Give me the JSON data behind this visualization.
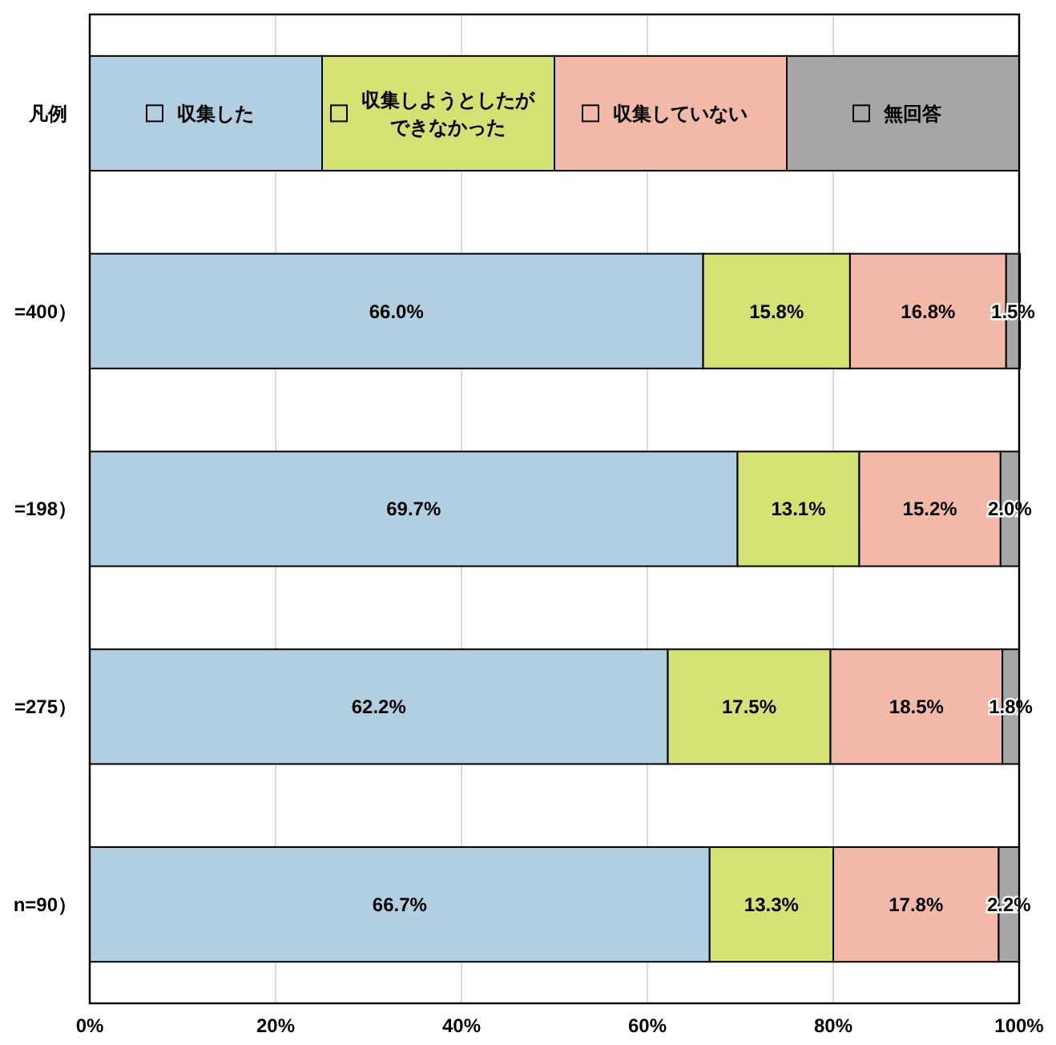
{
  "chart_data": {
    "type": "bar",
    "orientation": "horizontal",
    "stacked": true,
    "grid": "x",
    "legend": "top",
    "legend_title": "凡例",
    "categories": [
      "=400）",
      "=198）",
      "=275）",
      "n=90）"
    ],
    "series": [
      {
        "name": "収集した",
        "color": "#b1cfe1",
        "values": [
          66.0,
          69.7,
          62.2,
          66.7
        ],
        "value_labels": [
          "66.0%",
          "69.7%",
          "62.2%",
          "66.7%"
        ]
      },
      {
        "name": "収集しようとしたができなかった",
        "color": "#d5e173",
        "values": [
          15.8,
          13.1,
          17.5,
          13.3
        ],
        "value_labels": [
          "15.8%",
          "13.1%",
          "17.5%",
          "13.3%"
        ]
      },
      {
        "name": "収集していない",
        "color": "#f2b8a8",
        "values": [
          16.8,
          15.2,
          18.5,
          17.8
        ],
        "value_labels": [
          "16.8%",
          "15.2%",
          "18.5%",
          "17.8%"
        ]
      },
      {
        "name": "無回答",
        "color": "#a6a6a6",
        "values": [
          1.5,
          2.0,
          1.8,
          2.2
        ],
        "value_labels": [
          "1.5%",
          "2.0%",
          "1.8%",
          "2.2%"
        ]
      }
    ],
    "xlim": [
      0,
      100
    ],
    "xticks": [
      {
        "value": 0,
        "label": "0%"
      },
      {
        "value": 20,
        "label": "20%"
      },
      {
        "value": 40,
        "label": "40%"
      },
      {
        "value": 60,
        "label": "60%"
      },
      {
        "value": 80,
        "label": "80%"
      },
      {
        "value": 100,
        "label": "100%"
      }
    ]
  }
}
